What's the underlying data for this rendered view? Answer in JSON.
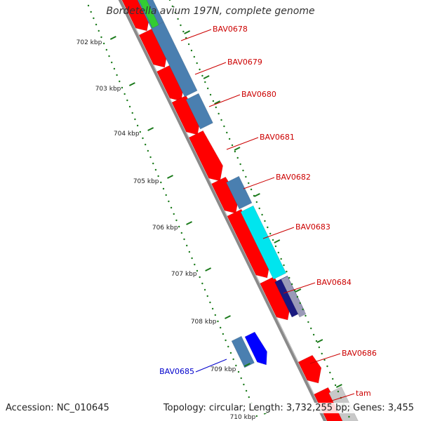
{
  "title": "Bordetella avium 197N, complete genome",
  "footer": {
    "accession": "Accession: NC_010645",
    "topology": "Topology: circular; Length: 3,732,255 bp; Genes: 3,455"
  },
  "colors": {
    "backbone": "#8a8a8a",
    "tick": "#1a7a1a",
    "gene_red": "#ff0000",
    "gene_steelblue": "#4a7fb0",
    "gene_cyan": "#00e5ee",
    "gene_navy": "#1a1a80",
    "gene_blue": "#0000ff",
    "gene_green": "#33cc33",
    "gene_gray": "#c8c8c8",
    "label_red": "#cc0000",
    "label_blue": "#0000cc"
  },
  "scale_labels": [
    "702 kbp",
    "703 kbp",
    "704 kbp",
    "705 kbp",
    "706 kbp",
    "707 kbp",
    "708 kbp",
    "709 kbp",
    "710 kbp"
  ],
  "gene_labels": [
    {
      "text": "BAV0678",
      "color": "label_red"
    },
    {
      "text": "BAV0679",
      "color": "label_red"
    },
    {
      "text": "BAV0680",
      "color": "label_red"
    },
    {
      "text": "BAV0681",
      "color": "label_red"
    },
    {
      "text": "BAV0682",
      "color": "label_red"
    },
    {
      "text": "BAV0683",
      "color": "label_red"
    },
    {
      "text": "BAV0684",
      "color": "label_red"
    },
    {
      "text": "BAV0685",
      "color": "label_blue"
    },
    {
      "text": "BAV0686",
      "color": "label_red"
    },
    {
      "text": "tam",
      "color": "label_red"
    }
  ]
}
